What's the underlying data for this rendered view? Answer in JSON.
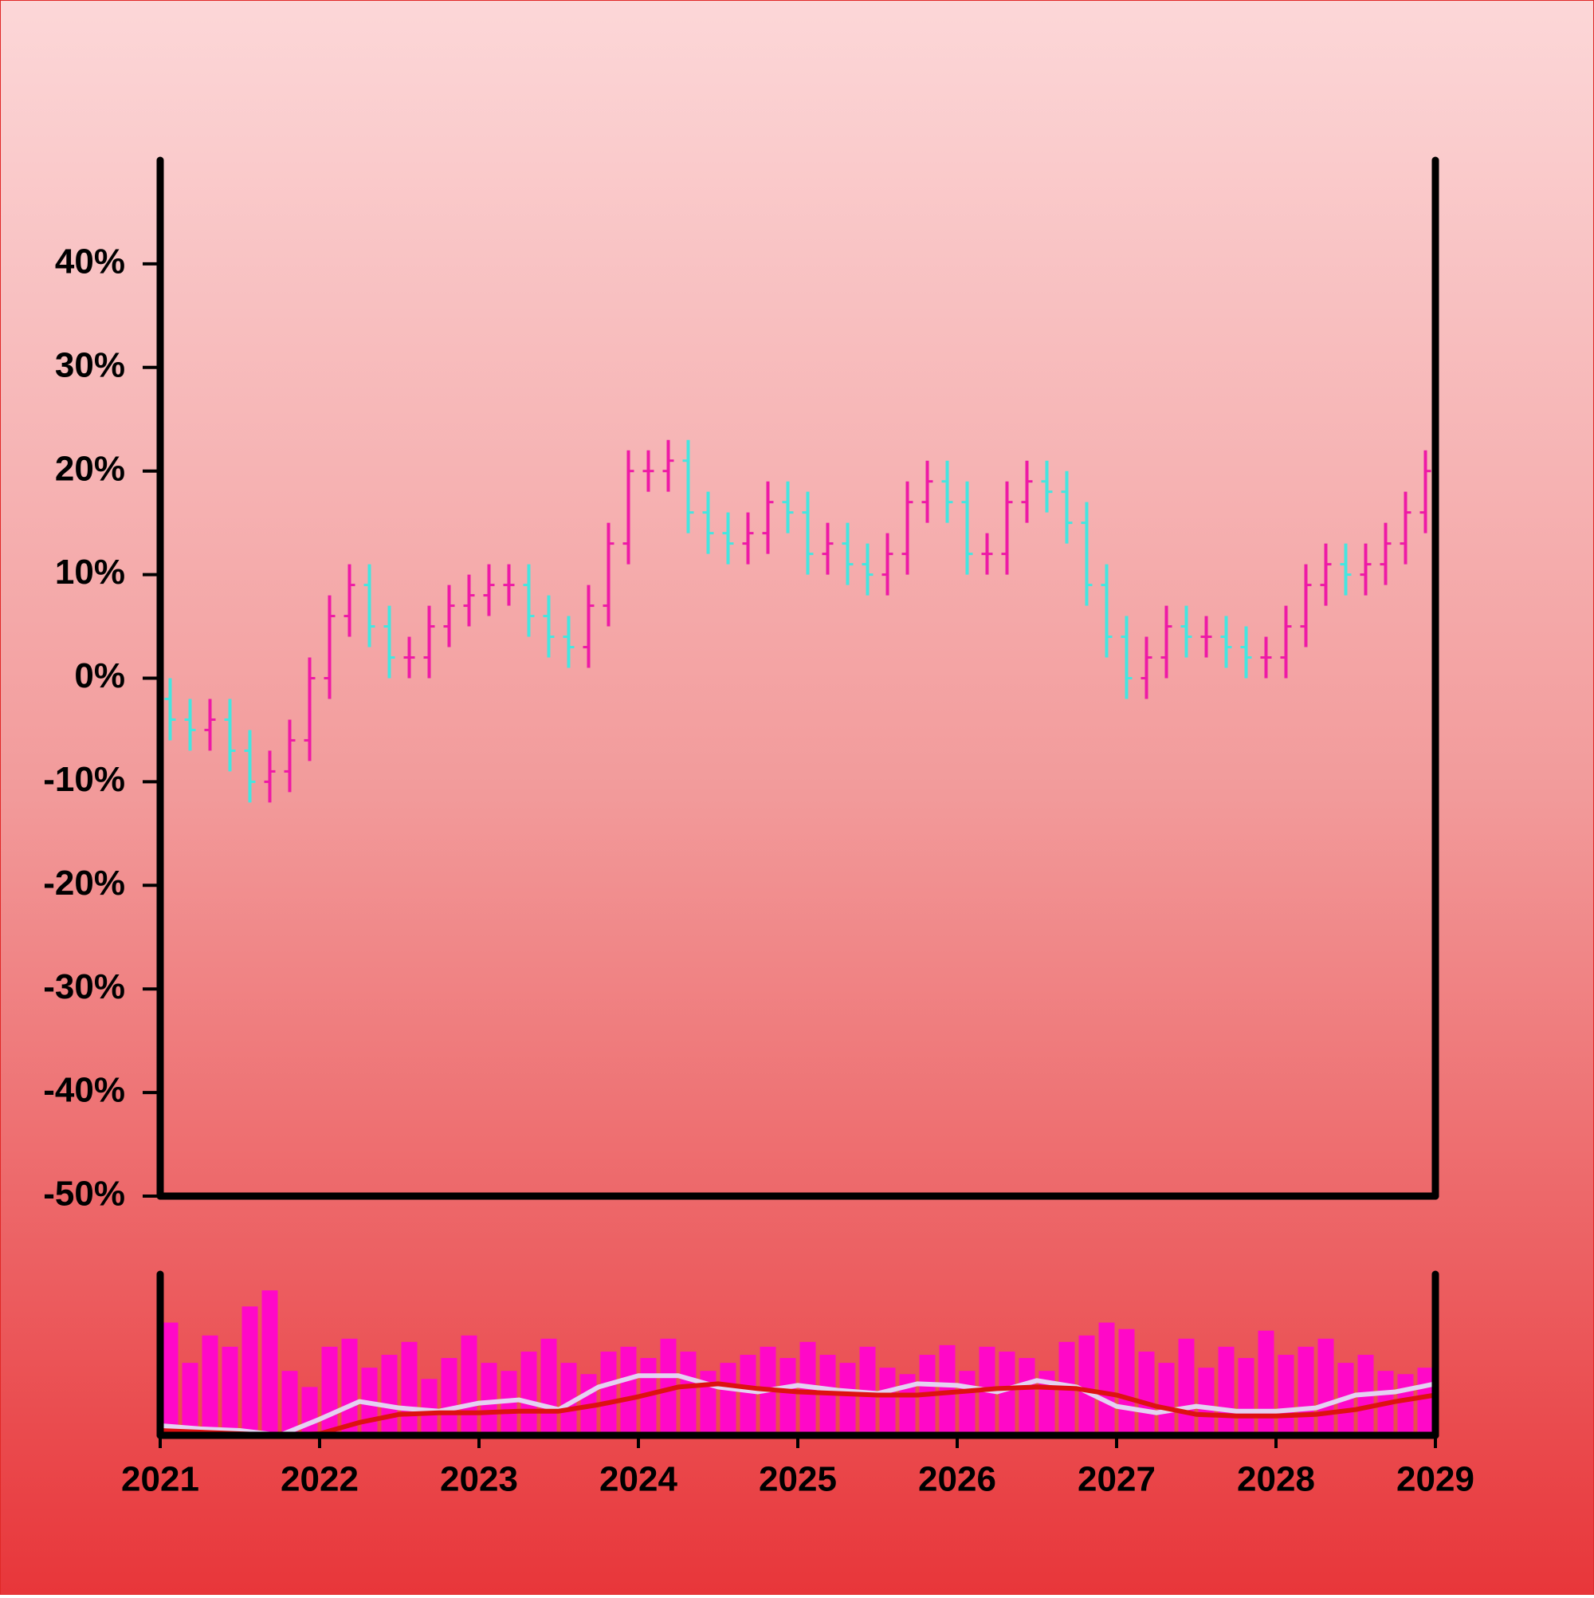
{
  "chart_data": [
    {
      "type": "ohlc",
      "xlim": [
        2021,
        2029
      ],
      "ylim": [
        -50,
        50
      ],
      "yticks": [
        {
          "value": -50,
          "label": "-50%"
        },
        {
          "value": -40,
          "label": "-40%"
        },
        {
          "value": -30,
          "label": "-30%"
        },
        {
          "value": -20,
          "label": "-20%"
        },
        {
          "value": -10,
          "label": "-10%"
        },
        {
          "value": 0,
          "label": "0%"
        },
        {
          "value": 10,
          "label": "10%"
        },
        {
          "value": 20,
          "label": "20%"
        },
        {
          "value": 30,
          "label": "30%"
        },
        {
          "value": 40,
          "label": "40%"
        }
      ],
      "up_color": "#ee1aa6",
      "down_color": "#44e6e0",
      "x": [
        2021.0625,
        2021.1875,
        2021.3125,
        2021.4375,
        2021.5625,
        2021.6875,
        2021.8125,
        2021.9375,
        2022.0625,
        2022.1875,
        2022.3125,
        2022.4375,
        2022.5625,
        2022.6875,
        2022.8125,
        2022.9375,
        2023.0625,
        2023.1875,
        2023.3125,
        2023.4375,
        2023.5625,
        2023.6875,
        2023.8125,
        2023.9375,
        2024.0625,
        2024.1875,
        2024.3125,
        2024.4375,
        2024.5625,
        2024.6875,
        2024.8125,
        2024.9375,
        2025.0625,
        2025.1875,
        2025.3125,
        2025.4375,
        2025.5625,
        2025.6875,
        2025.8125,
        2025.9375,
        2026.0625,
        2026.1875,
        2026.3125,
        2026.4375,
        2026.5625,
        2026.6875,
        2026.8125,
        2026.9375,
        2027.0625,
        2027.1875,
        2027.3125,
        2027.4375,
        2027.5625,
        2027.6875,
        2027.8125,
        2027.9375,
        2028.0625,
        2028.1875,
        2028.3125,
        2028.4375,
        2028.5625,
        2028.6875,
        2028.8125,
        2028.9375
      ],
      "open": [
        -2,
        -4,
        -5,
        -4,
        -7,
        -10,
        -9,
        -6,
        0,
        6,
        9,
        5,
        2,
        2,
        5,
        7,
        8,
        9,
        9,
        6,
        4,
        3,
        7,
        13,
        20,
        20,
        21,
        16,
        14,
        13,
        14,
        17,
        16,
        12,
        13,
        11,
        10,
        12,
        17,
        19,
        17,
        12,
        12,
        17,
        19,
        18,
        15,
        9,
        4,
        0,
        2,
        5,
        4,
        4,
        3,
        2,
        2,
        5,
        9,
        11,
        10,
        11,
        13,
        16
      ],
      "high": [
        0,
        -2,
        -2,
        -2,
        -5,
        -7,
        -4,
        2,
        8,
        11,
        11,
        7,
        4,
        7,
        9,
        10,
        11,
        11,
        11,
        8,
        6,
        9,
        15,
        22,
        22,
        23,
        23,
        18,
        16,
        16,
        19,
        19,
        18,
        15,
        15,
        13,
        14,
        19,
        21,
        21,
        19,
        14,
        19,
        21,
        21,
        20,
        17,
        11,
        6,
        4,
        7,
        7,
        6,
        6,
        5,
        4,
        7,
        11,
        13,
        13,
        13,
        15,
        18,
        22
      ],
      "low": [
        -6,
        -7,
        -7,
        -9,
        -12,
        -12,
        -11,
        -8,
        -2,
        4,
        3,
        0,
        0,
        0,
        3,
        5,
        6,
        7,
        4,
        2,
        1,
        1,
        5,
        11,
        18,
        18,
        14,
        12,
        11,
        11,
        12,
        14,
        10,
        10,
        9,
        8,
        8,
        10,
        15,
        15,
        10,
        10,
        10,
        15,
        16,
        13,
        7,
        2,
        -2,
        -2,
        0,
        2,
        2,
        1,
        0,
        0,
        0,
        3,
        7,
        8,
        8,
        9,
        11,
        14
      ],
      "close": [
        -4,
        -5,
        -4,
        -7,
        -10,
        -9,
        -6,
        0,
        6,
        9,
        5,
        2,
        2,
        5,
        7,
        8,
        9,
        9,
        6,
        4,
        3,
        7,
        13,
        20,
        20,
        21,
        16,
        14,
        13,
        14,
        17,
        16,
        12,
        13,
        11,
        10,
        12,
        17,
        19,
        17,
        12,
        12,
        17,
        19,
        18,
        15,
        9,
        4,
        0,
        2,
        5,
        4,
        4,
        3,
        2,
        2,
        5,
        9,
        11,
        10,
        11,
        13,
        16,
        20
      ]
    },
    {
      "type": "volume",
      "xlim": [
        2021,
        2029
      ],
      "ylim": [
        0,
        100
      ],
      "xticks": [
        2021,
        2022,
        2023,
        2024,
        2025,
        2026,
        2027,
        2028,
        2029
      ],
      "color": "#ff08c8",
      "x": [
        2021.0625,
        2021.1875,
        2021.3125,
        2021.4375,
        2021.5625,
        2021.6875,
        2021.8125,
        2021.9375,
        2022.0625,
        2022.1875,
        2022.3125,
        2022.4375,
        2022.5625,
        2022.6875,
        2022.8125,
        2022.9375,
        2023.0625,
        2023.1875,
        2023.3125,
        2023.4375,
        2023.5625,
        2023.6875,
        2023.8125,
        2023.9375,
        2024.0625,
        2024.1875,
        2024.3125,
        2024.4375,
        2024.5625,
        2024.6875,
        2024.8125,
        2024.9375,
        2025.0625,
        2025.1875,
        2025.3125,
        2025.4375,
        2025.5625,
        2025.6875,
        2025.8125,
        2025.9375,
        2026.0625,
        2026.1875,
        2026.3125,
        2026.4375,
        2026.5625,
        2026.6875,
        2026.8125,
        2026.9375,
        2027.0625,
        2027.1875,
        2027.3125,
        2027.4375,
        2027.5625,
        2027.6875,
        2027.8125,
        2027.9375,
        2028.0625,
        2028.1875,
        2028.3125,
        2028.4375,
        2028.5625,
        2028.6875,
        2028.8125,
        2028.9375
      ],
      "values": [
        70,
        45,
        62,
        55,
        80,
        90,
        40,
        30,
        55,
        60,
        42,
        50,
        58,
        35,
        48,
        62,
        45,
        40,
        52,
        60,
        45,
        38,
        52,
        55,
        48,
        60,
        52,
        40,
        45,
        50,
        55,
        48,
        58,
        50,
        45,
        55,
        42,
        38,
        50,
        56,
        40,
        55,
        52,
        48,
        40,
        58,
        62,
        70,
        66,
        52,
        45,
        60,
        42,
        55,
        48,
        65,
        50,
        55,
        60,
        45,
        50,
        40,
        38,
        42
      ],
      "series": [
        {
          "color": "#e4d2f2",
          "x": [
            2021,
            2021.25,
            2021.5,
            2021.75,
            2022,
            2022.25,
            2022.5,
            2022.75,
            2023,
            2023.25,
            2023.5,
            2023.75,
            2024,
            2024.25,
            2024.5,
            2024.75,
            2025,
            2025.25,
            2025.5,
            2025.75,
            2026,
            2026.25,
            2026.5,
            2026.75,
            2027,
            2027.25,
            2027.5,
            2027.75,
            2028,
            2028.25,
            2028.5,
            2028.75,
            2029
          ],
          "values": [
            6,
            4,
            3,
            0,
            10,
            21,
            17,
            15,
            20,
            22,
            16,
            30,
            37,
            37,
            30,
            27,
            31,
            28,
            26,
            32,
            31,
            27,
            34,
            30,
            18,
            14,
            18,
            15,
            15,
            17,
            25,
            27,
            32
          ]
        },
        {
          "color": "#dd1111",
          "x": [
            2021,
            2021.25,
            2021.5,
            2021.75,
            2022,
            2022.25,
            2022.5,
            2022.75,
            2023,
            2023.25,
            2023.5,
            2023.75,
            2024,
            2024.25,
            2024.5,
            2024.75,
            2025,
            2025.25,
            2025.5,
            2025.75,
            2026,
            2026.25,
            2026.5,
            2026.75,
            2027,
            2027.25,
            2027.5,
            2027.75,
            2028,
            2028.25,
            2028.5,
            2028.75,
            2029
          ],
          "values": [
            3,
            2,
            1,
            0,
            1,
            8,
            13,
            14,
            14,
            15,
            15,
            19,
            24,
            30,
            32,
            29,
            27,
            26,
            25,
            25,
            27,
            29,
            30,
            29,
            25,
            18,
            13,
            12,
            12,
            13,
            16,
            21,
            25
          ]
        }
      ]
    }
  ]
}
